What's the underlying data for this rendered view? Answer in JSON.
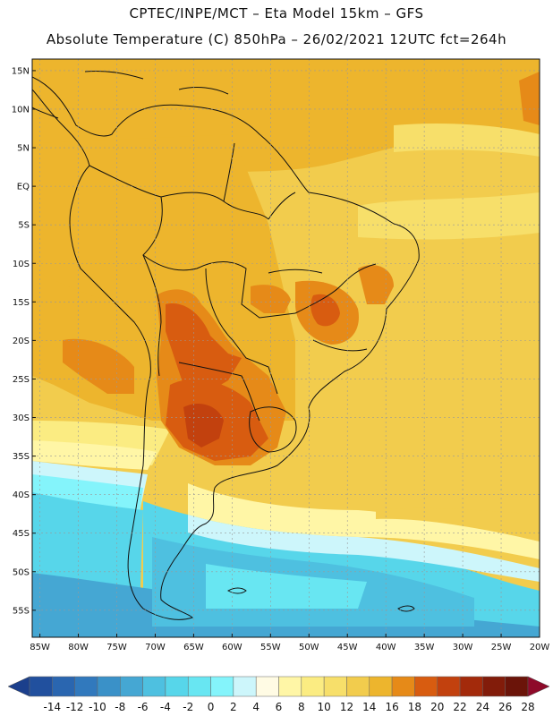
{
  "header": {
    "title_line1": "CPTEC/INPE/MCT –   Eta Model 15km – GFS",
    "title_line2": "Absolute Temperature (C) 850hPa – 26/02/2021 12UTC fct=264h"
  },
  "axes": {
    "lat_labels": [
      "15N",
      "10N",
      "5N",
      "EQ",
      "5S",
      "10S",
      "15S",
      "20S",
      "25S",
      "30S",
      "35S",
      "40S",
      "45S",
      "50S",
      "55S"
    ],
    "lat_values": [
      15,
      10,
      5,
      0,
      -5,
      -10,
      -15,
      -20,
      -25,
      -30,
      -35,
      -40,
      -45,
      -50,
      -55
    ],
    "lon_labels": [
      "85W",
      "80W",
      "75W",
      "70W",
      "65W",
      "60W",
      "55W",
      "50W",
      "45W",
      "40W",
      "35W",
      "30W",
      "25W",
      "20W"
    ],
    "lon_values": [
      -85,
      -80,
      -75,
      -70,
      -65,
      -60,
      -55,
      -50,
      -45,
      -40,
      -35,
      -30,
      -25,
      -20
    ],
    "lon_range": [
      -86,
      -20
    ],
    "lat_range": [
      -58.5,
      16.5
    ],
    "grid": true
  },
  "colorbar": {
    "labels": [
      "-14",
      "-12",
      "-10",
      "-8",
      "-6",
      "-4",
      "-2",
      "0",
      "2",
      "4",
      "6",
      "8",
      "10",
      "12",
      "14",
      "16",
      "18",
      "20",
      "22",
      "24",
      "26",
      "28"
    ],
    "colors": [
      "#1b3f8c",
      "#21509e",
      "#2a66b0",
      "#3179bd",
      "#3a91c8",
      "#45a7d3",
      "#4ec0e0",
      "#57d6ea",
      "#68e6f2",
      "#84f4fb",
      "#cdf6fb",
      "#fffbe4",
      "#fff6a6",
      "#fbec82",
      "#f7df6a",
      "#f2cc4d",
      "#edb52d",
      "#e68a18",
      "#d85c10",
      "#c2410e",
      "#a32a0b",
      "#821c0a",
      "#6b1409",
      "#8e0a2a"
    ]
  }
}
